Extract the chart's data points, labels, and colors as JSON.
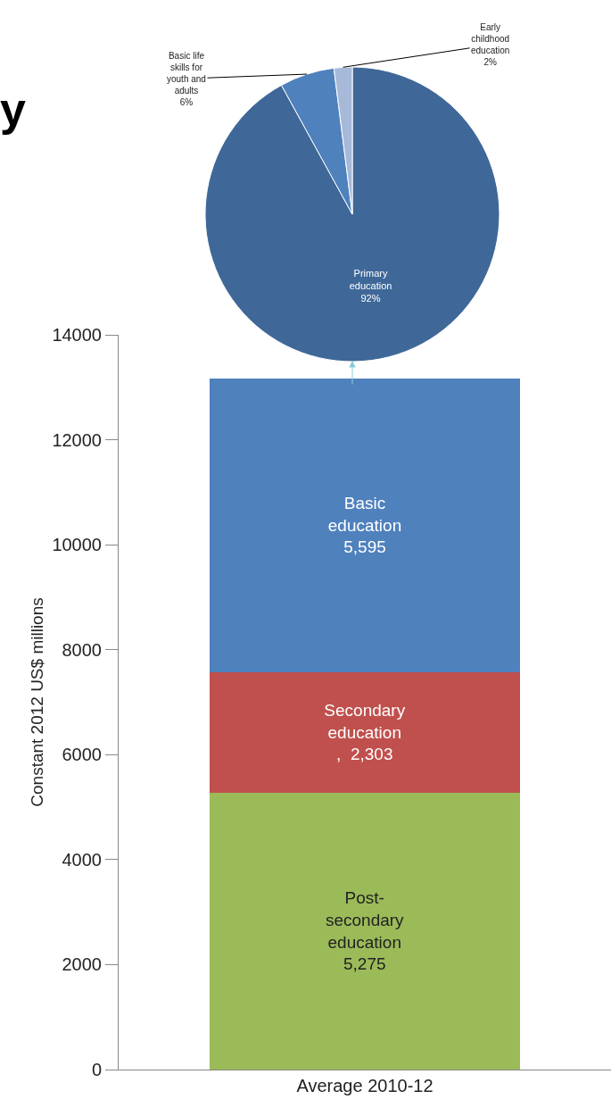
{
  "chart_data": [
    {
      "type": "pie",
      "title": "y",
      "categories": [
        "Primary education",
        "Basic life skills for youth and adults",
        "Early childhood education"
      ],
      "values": [
        92,
        6,
        2
      ],
      "colors": [
        "#3f6899",
        "#4f81bd",
        "#a7b9d8"
      ],
      "value_labels": [
        "92%",
        "6%",
        "2%"
      ]
    },
    {
      "type": "bar",
      "stacked": true,
      "categories": [
        "Average 2010-12"
      ],
      "ylabel": "Constant 2012 US$ millions",
      "ylim": [
        0,
        14000
      ],
      "yticks": [
        0,
        2000,
        4000,
        6000,
        8000,
        10000,
        12000,
        14000
      ],
      "series": [
        {
          "name": "Post-secondary education",
          "color": "#9bbb59",
          "values": [
            5275
          ],
          "value_labels": [
            "5,275"
          ]
        },
        {
          "name": "Secondary education",
          "color": "#c0504d",
          "values": [
            2303
          ],
          "value_labels": [
            ",  2,303"
          ]
        },
        {
          "name": "Basic education",
          "color": "#4f81bd",
          "values": [
            5595
          ],
          "value_labels": [
            "5,595"
          ]
        }
      ]
    }
  ]
}
